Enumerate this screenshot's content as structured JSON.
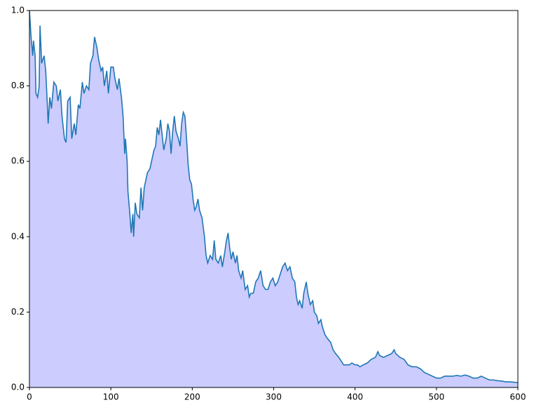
{
  "chart_data": {
    "type": "area",
    "x": [
      0,
      2,
      4,
      5,
      7,
      8,
      10,
      12,
      13,
      15,
      18,
      20,
      22,
      23,
      25,
      27,
      30,
      33,
      35,
      38,
      40,
      43,
      45,
      47,
      50,
      52,
      55,
      57,
      60,
      62,
      65,
      67,
      70,
      73,
      75,
      78,
      80,
      83,
      85,
      88,
      90,
      92,
      95,
      97,
      100,
      103,
      105,
      108,
      110,
      113,
      115,
      117,
      118,
      120,
      121,
      123,
      125,
      127,
      128,
      130,
      132,
      135,
      137,
      139,
      141,
      143,
      145,
      148,
      150,
      153,
      155,
      157,
      159,
      161,
      163,
      165,
      168,
      170,
      172,
      174,
      176,
      178,
      180,
      183,
      185,
      187,
      189,
      191,
      193,
      195,
      197,
      199,
      201,
      203,
      205,
      207,
      209,
      212,
      215,
      217,
      219,
      222,
      225,
      227,
      229,
      232,
      235,
      237,
      240,
      242,
      244,
      246,
      248,
      250,
      253,
      255,
      257,
      260,
      262,
      265,
      268,
      270,
      272,
      275,
      278,
      281,
      284,
      287,
      290,
      293,
      296,
      299,
      302,
      305,
      308,
      311,
      314,
      317,
      320,
      323,
      326,
      328,
      330,
      332,
      335,
      337,
      340,
      342,
      345,
      348,
      350,
      353,
      355,
      358,
      360,
      363,
      366,
      370,
      373,
      376,
      380,
      383,
      386,
      390,
      393,
      396,
      400,
      403,
      406,
      410,
      415,
      420,
      425,
      428,
      430,
      435,
      440,
      445,
      448,
      450,
      455,
      460,
      465,
      470,
      475,
      480,
      485,
      490,
      495,
      500,
      505,
      510,
      515,
      520,
      525,
      530,
      535,
      540,
      545,
      550,
      555,
      560,
      565,
      570,
      575,
      580,
      585,
      590,
      595,
      600
    ],
    "series": [
      {
        "color": "#1f77b4",
        "fill": "#ccccff",
        "values": [
          1.0,
          0.93,
          0.88,
          0.92,
          0.88,
          0.78,
          0.77,
          0.8,
          0.96,
          0.86,
          0.88,
          0.84,
          0.75,
          0.7,
          0.77,
          0.74,
          0.81,
          0.8,
          0.76,
          0.79,
          0.72,
          0.66,
          0.65,
          0.76,
          0.77,
          0.66,
          0.7,
          0.67,
          0.75,
          0.74,
          0.81,
          0.78,
          0.8,
          0.79,
          0.86,
          0.88,
          0.93,
          0.9,
          0.87,
          0.84,
          0.85,
          0.8,
          0.84,
          0.78,
          0.85,
          0.85,
          0.82,
          0.79,
          0.82,
          0.77,
          0.72,
          0.62,
          0.66,
          0.6,
          0.52,
          0.47,
          0.41,
          0.46,
          0.4,
          0.49,
          0.46,
          0.45,
          0.53,
          0.47,
          0.53,
          0.55,
          0.57,
          0.58,
          0.6,
          0.63,
          0.64,
          0.69,
          0.67,
          0.71,
          0.67,
          0.63,
          0.66,
          0.7,
          0.68,
          0.62,
          0.68,
          0.72,
          0.68,
          0.66,
          0.64,
          0.7,
          0.73,
          0.72,
          0.66,
          0.59,
          0.55,
          0.54,
          0.5,
          0.47,
          0.48,
          0.5,
          0.47,
          0.45,
          0.4,
          0.35,
          0.33,
          0.35,
          0.34,
          0.39,
          0.34,
          0.33,
          0.35,
          0.32,
          0.36,
          0.39,
          0.41,
          0.37,
          0.34,
          0.36,
          0.33,
          0.35,
          0.31,
          0.29,
          0.31,
          0.26,
          0.27,
          0.24,
          0.25,
          0.25,
          0.28,
          0.29,
          0.31,
          0.27,
          0.26,
          0.26,
          0.28,
          0.29,
          0.27,
          0.28,
          0.3,
          0.32,
          0.33,
          0.31,
          0.32,
          0.29,
          0.28,
          0.24,
          0.22,
          0.23,
          0.21,
          0.25,
          0.28,
          0.25,
          0.22,
          0.23,
          0.2,
          0.19,
          0.17,
          0.18,
          0.16,
          0.14,
          0.13,
          0.12,
          0.1,
          0.09,
          0.08,
          0.07,
          0.06,
          0.06,
          0.06,
          0.065,
          0.06,
          0.06,
          0.055,
          0.06,
          0.065,
          0.075,
          0.08,
          0.095,
          0.085,
          0.08,
          0.085,
          0.09,
          0.1,
          0.09,
          0.08,
          0.075,
          0.06,
          0.055,
          0.055,
          0.05,
          0.04,
          0.035,
          0.03,
          0.025,
          0.025,
          0.03,
          0.03,
          0.03,
          0.032,
          0.03,
          0.033,
          0.03,
          0.025,
          0.025,
          0.03,
          0.025,
          0.02,
          0.02,
          0.018,
          0.017,
          0.015,
          0.015,
          0.014,
          0.013
        ]
      }
    ],
    "xlim": [
      0,
      600
    ],
    "ylim": [
      0,
      1
    ],
    "xticks": [
      0,
      100,
      200,
      300,
      400,
      500,
      600
    ],
    "yticks": [
      {
        "value": 0,
        "label": "0.0"
      },
      0.2,
      0.4,
      0.6,
      0.8,
      {
        "value": 1,
        "label": "1.0"
      }
    ]
  }
}
